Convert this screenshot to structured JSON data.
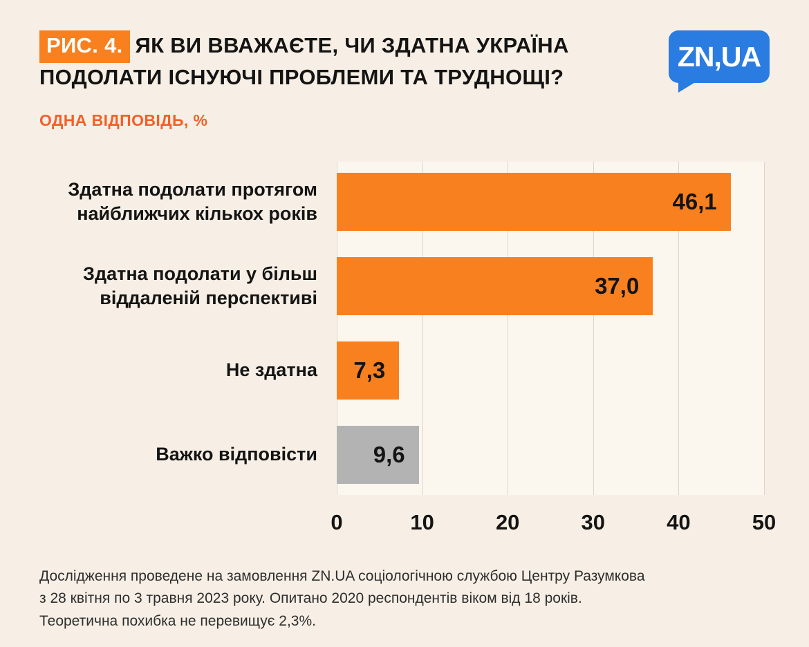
{
  "figure_label": "РИС. 4.",
  "title": "ЯК ВИ ВВАЖАЄТЕ, ЧИ ЗДАТНА УКРАЇНА ПОДОЛАТИ ІСНУЮЧІ ПРОБЛЕМИ ТА ТРУДНОЩІ?",
  "subtitle": "ОДНА ВІДПОВІДЬ, %",
  "logo_text": "ZN,UA",
  "chart_data": {
    "type": "bar",
    "orientation": "horizontal",
    "title": "ЯК ВИ ВВАЖАЄТЕ, ЧИ ЗДАТНА УКРАЇНА ПОДОЛАТИ ІСНУЮЧІ ПРОБЛЕМИ ТА ТРУДНОЩІ?",
    "categories": [
      "Здатна подолати протягом найближчих кількох років",
      "Здатна подолати у більш віддаленій перспективі",
      "Не здатна",
      "Важко відповісти"
    ],
    "values": [
      46.1,
      37.0,
      7.3,
      9.6
    ],
    "value_labels": [
      "46,1",
      "37,0",
      "7,3",
      "9,6"
    ],
    "bar_colors": [
      "#f8801f",
      "#f8801f",
      "#f8801f",
      "#b3b3b3"
    ],
    "xlabel": "",
    "ylabel": "",
    "xlim": [
      0,
      50
    ],
    "xticks": [
      0,
      10,
      20,
      30,
      40,
      50
    ],
    "grid": true,
    "legend": false
  },
  "colors": {
    "background": "#f7efe5",
    "accent_orange": "#f8801f",
    "subtitle_orange": "#f2602a",
    "gray_bar": "#b3b3b3",
    "logo_blue": "#2b7ce0"
  },
  "footnote": {
    "lines": [
      "Дослідження проведене на замовлення ZN.UA соціологічною службою Центру Разумкова",
      "з 28 квітня по 3 травня 2023 року. Опитано 2020 респондентів віком від 18 років.",
      "Теоретична похибка не перевищує 2,3%."
    ]
  }
}
